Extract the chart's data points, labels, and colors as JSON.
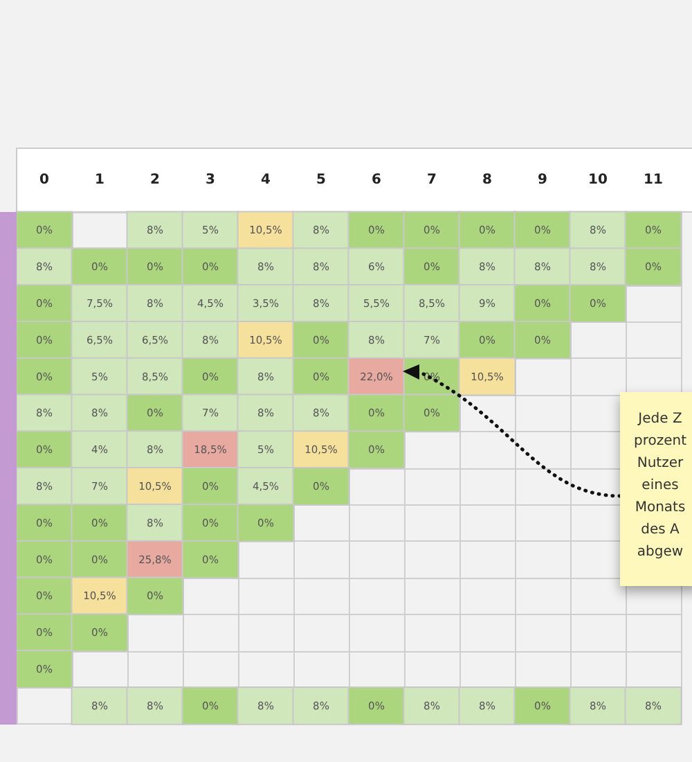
{
  "chart_data": {
    "type": "heatmap",
    "categories": [
      "0",
      "1",
      "2",
      "3",
      "4",
      "5",
      "6",
      "7",
      "8",
      "9",
      "10",
      "11"
    ],
    "y_categories": [
      null,
      null,
      null,
      null,
      null,
      null,
      null,
      null,
      null,
      null,
      null,
      null,
      null,
      null
    ],
    "cells": [
      [
        0,
        null,
        8,
        5,
        10.5,
        8,
        0,
        0,
        0,
        0,
        8,
        0
      ],
      [
        8,
        0,
        0,
        0,
        8,
        8,
        6,
        0,
        8,
        8,
        8,
        0
      ],
      [
        0,
        7.5,
        8,
        4.5,
        3.5,
        8,
        5.5,
        8.5,
        9,
        0,
        0,
        null
      ],
      [
        0,
        6.5,
        6.5,
        8,
        10.5,
        0,
        8,
        7,
        0,
        0,
        null,
        null
      ],
      [
        0,
        5,
        8.5,
        0,
        8,
        0,
        22,
        0,
        10.5,
        null,
        null,
        null
      ],
      [
        8,
        8,
        0,
        7,
        8,
        8,
        0,
        0,
        null,
        null,
        null,
        null
      ],
      [
        0,
        4,
        8,
        18.5,
        5,
        10.5,
        0,
        null,
        null,
        null,
        null,
        null
      ],
      [
        8,
        7,
        10.5,
        0,
        4.5,
        0,
        null,
        null,
        null,
        null,
        null,
        null
      ],
      [
        0,
        0,
        8,
        0,
        0,
        null,
        null,
        null,
        null,
        null,
        null,
        null
      ],
      [
        0,
        0,
        25.8,
        0,
        null,
        null,
        null,
        null,
        null,
        null,
        null,
        null
      ],
      [
        0,
        10.5,
        0,
        null,
        null,
        null,
        null,
        null,
        null,
        null,
        null,
        null
      ],
      [
        0,
        0,
        null,
        null,
        null,
        null,
        null,
        null,
        null,
        null,
        null,
        null
      ],
      [
        0,
        null,
        null,
        null,
        null,
        null,
        null,
        null,
        null,
        null,
        null,
        null
      ],
      [
        null,
        8,
        8,
        0,
        8,
        8,
        0,
        8,
        8,
        0,
        8,
        8
      ]
    ],
    "cell_labels": [
      [
        "0%",
        null,
        "8%",
        "5%",
        "10,5%",
        "8%",
        "0%",
        "0%",
        "0%",
        "0%",
        "8%",
        "0%"
      ],
      [
        "8%",
        "0%",
        "0%",
        "0%",
        "8%",
        "8%",
        "6%",
        "0%",
        "8%",
        "8%",
        "8%",
        "0%"
      ],
      [
        "0%",
        "7,5%",
        "8%",
        "4,5%",
        "3,5%",
        "8%",
        "5,5%",
        "8,5%",
        "9%",
        "0%",
        "0%",
        null
      ],
      [
        "0%",
        "6,5%",
        "6,5%",
        "8%",
        "10,5%",
        "0%",
        "8%",
        "7%",
        "0%",
        "0%",
        null,
        null
      ],
      [
        "0%",
        "5%",
        "8,5%",
        "0%",
        "8%",
        "0%",
        "22,0%",
        "0%",
        "10,5%",
        null,
        null,
        null
      ],
      [
        "8%",
        "8%",
        "0%",
        "7%",
        "8%",
        "8%",
        "0%",
        "0%",
        null,
        null,
        null,
        null
      ],
      [
        "0%",
        "4%",
        "8%",
        "18,5%",
        "5%",
        "10,5%",
        "0%",
        null,
        null,
        null,
        null,
        null
      ],
      [
        "8%",
        "7%",
        "10,5%",
        "0%",
        "4,5%",
        "0%",
        null,
        null,
        null,
        null,
        null,
        null
      ],
      [
        "0%",
        "0%",
        "8%",
        "0%",
        "0%",
        null,
        null,
        null,
        null,
        null,
        null,
        null
      ],
      [
        "0%",
        "0%",
        "25,8%",
        "0%",
        null,
        null,
        null,
        null,
        null,
        null,
        null,
        null
      ],
      [
        "0%",
        "10,5%",
        "0%",
        null,
        null,
        null,
        null,
        null,
        null,
        null,
        null,
        null
      ],
      [
        "0%",
        "0%",
        null,
        null,
        null,
        null,
        null,
        null,
        null,
        null,
        null,
        null
      ],
      [
        "0%",
        null,
        null,
        null,
        null,
        null,
        null,
        null,
        null,
        null,
        null,
        null
      ],
      [
        null,
        "8%",
        "8%",
        "0%",
        "8%",
        "8%",
        "0%",
        "8%",
        "8%",
        "0%",
        "8%",
        "8%"
      ]
    ],
    "colors": [
      [
        "#acd67e",
        null,
        "#d0e6bb",
        "#d0e6bb",
        "#f5e09c",
        "#d0e6bb",
        "#acd67e",
        "#acd67e",
        "#acd67e",
        "#acd67e",
        "#d0e6bb",
        "#acd67e"
      ],
      [
        "#d0e6bb",
        "#acd67e",
        "#acd67e",
        "#acd67e",
        "#d0e6bb",
        "#d0e6bb",
        "#d0e6bb",
        "#acd67e",
        "#d0e6bb",
        "#d0e6bb",
        "#d0e6bb",
        "#acd67e"
      ],
      [
        "#acd67e",
        "#d0e6bb",
        "#d0e6bb",
        "#d0e6bb",
        "#d0e6bb",
        "#d0e6bb",
        "#d0e6bb",
        "#d0e6bb",
        "#d0e6bb",
        "#acd67e",
        "#acd67e",
        null
      ],
      [
        "#acd67e",
        "#d0e6bb",
        "#d0e6bb",
        "#d0e6bb",
        "#f5e09c",
        "#acd67e",
        "#d0e6bb",
        "#d0e6bb",
        "#acd67e",
        "#acd67e",
        null,
        null
      ],
      [
        "#acd67e",
        "#d0e6bb",
        "#d0e6bb",
        "#acd67e",
        "#d0e6bb",
        "#acd67e",
        "#e8aaa0",
        "#acd67e",
        "#f5e09c",
        null,
        null,
        null
      ],
      [
        "#d0e6bb",
        "#d0e6bb",
        "#acd67e",
        "#d0e6bb",
        "#d0e6bb",
        "#d0e6bb",
        "#acd67e",
        "#acd67e",
        null,
        null,
        null,
        null
      ],
      [
        "#acd67e",
        "#d0e6bb",
        "#d0e6bb",
        "#e8aaa0",
        "#d0e6bb",
        "#f5e09c",
        "#acd67e",
        null,
        null,
        null,
        null,
        null
      ],
      [
        "#d0e6bb",
        "#d0e6bb",
        "#f5e09c",
        "#acd67e",
        "#d0e6bb",
        "#acd67e",
        null,
        null,
        null,
        null,
        null,
        null
      ],
      [
        "#acd67e",
        "#acd67e",
        "#d0e6bb",
        "#acd67e",
        "#acd67e",
        null,
        null,
        null,
        null,
        null,
        null,
        null
      ],
      [
        "#acd67e",
        "#acd67e",
        "#e8aaa0",
        "#acd67e",
        null,
        null,
        null,
        null,
        null,
        null,
        null,
        null
      ],
      [
        "#acd67e",
        "#f5e09c",
        "#acd67e",
        null,
        null,
        null,
        null,
        null,
        null,
        null,
        null,
        null
      ],
      [
        "#acd67e",
        "#acd67e",
        null,
        null,
        null,
        null,
        null,
        null,
        null,
        null,
        null,
        null
      ],
      [
        "#acd67e",
        null,
        null,
        null,
        null,
        null,
        null,
        null,
        null,
        null,
        null,
        null
      ],
      [
        null,
        "#d0e6bb",
        "#d0e6bb",
        "#acd67e",
        "#d0e6bb",
        "#d0e6bb",
        "#acd67e",
        "#d0e6bb",
        "#d0e6bb",
        "#acd67e",
        "#d0e6bb",
        "#d0e6bb"
      ]
    ],
    "grid": true,
    "annotations": [
      "Jede Z\nprozent\nNutzer\neines\nMonats\ndes A\nabgew"
    ]
  }
}
